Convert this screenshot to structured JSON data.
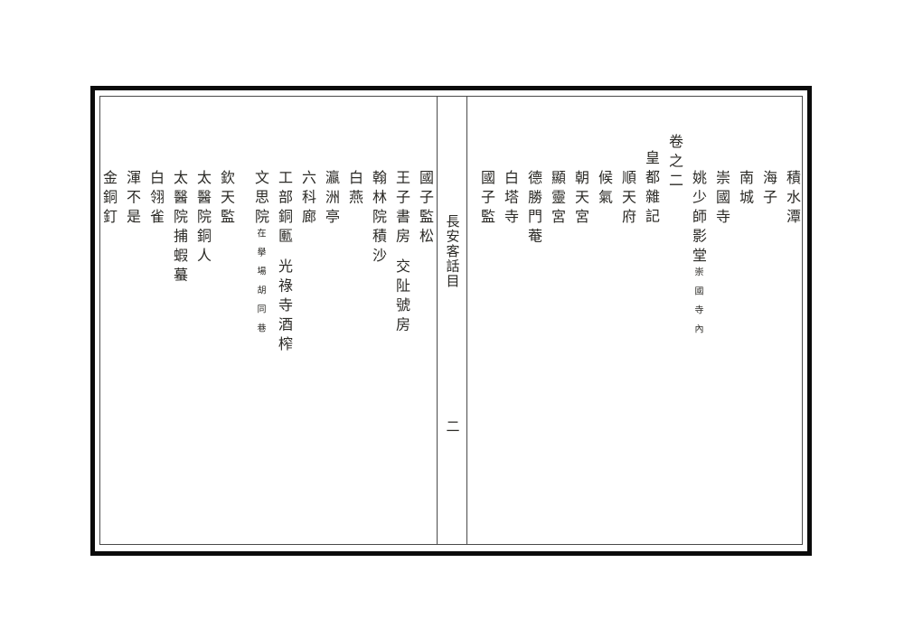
{
  "book": {
    "spine_title": "長安客話目",
    "page_number": "二"
  },
  "right_page": {
    "columns": [
      {
        "text": "積水潭",
        "level": "entry"
      },
      {
        "text": "海子",
        "level": "entry"
      },
      {
        "text": "南城",
        "level": "entry"
      },
      {
        "text": "崇國寺",
        "level": "entry"
      },
      {
        "text": "姚少師影堂",
        "level": "entry",
        "note": "崇國寺內"
      },
      {
        "text": "卷之二",
        "level": "volume"
      },
      {
        "text": "皇都雜記",
        "level": "section"
      },
      {
        "text": "順天府",
        "level": "entry"
      },
      {
        "text": "候氣",
        "level": "entry"
      },
      {
        "text": "朝天宮",
        "level": "entry"
      },
      {
        "text": "顯靈宮",
        "level": "entry"
      },
      {
        "text": "德勝門菴",
        "level": "entry"
      },
      {
        "text": "白塔寺",
        "level": "entry"
      },
      {
        "text": "國子監",
        "level": "entry"
      }
    ]
  },
  "left_page": {
    "columns": [
      {
        "text": "國子監松",
        "level": "entry"
      },
      {
        "text": "王子書房",
        "level": "entry",
        "second": "交阯號房"
      },
      {
        "text": "翰林院積沙",
        "level": "entry"
      },
      {
        "text": "白燕",
        "level": "entry"
      },
      {
        "text": "瀛洲亭",
        "level": "entry"
      },
      {
        "text": "六科廊",
        "level": "entry"
      },
      {
        "text": "工部銅匭",
        "level": "entry",
        "second": "光祿寺酒榨"
      },
      {
        "text": "文思院",
        "level": "entry",
        "note": "在擧場胡同巷"
      },
      {
        "text": "欽天監",
        "level": "entry"
      },
      {
        "text": "太醫院銅人",
        "level": "entry"
      },
      {
        "text": "太醫院捕蝦蟇",
        "level": "entry"
      },
      {
        "text": "白翎雀",
        "level": "entry"
      },
      {
        "text": "渾不是",
        "level": "entry"
      },
      {
        "text": "金銅釘",
        "level": "entry"
      }
    ]
  },
  "colors": {
    "ink": "#2b2a26",
    "frame": "#0b0b0b",
    "rule": "#4a4a4a",
    "paper": "#ffffff"
  }
}
